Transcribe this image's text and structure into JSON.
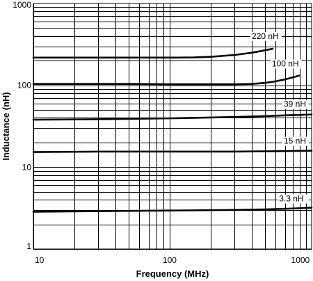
{
  "chart_data": {
    "type": "line",
    "title": "",
    "xlabel": "Frequency (MHz)",
    "ylabel": "Inductance (nH)",
    "x_scale": "log",
    "y_scale": "log",
    "xlim": [
      10,
      1100
    ],
    "ylim": [
      1,
      1000
    ],
    "grid": true,
    "legend": "inline labels at right end of each curve",
    "x_ticks": [
      {
        "value": 10,
        "label": "10"
      },
      {
        "value": 100,
        "label": "100"
      },
      {
        "value": 1000,
        "label": "1000"
      }
    ],
    "y_ticks": [
      {
        "value": 1,
        "label": "1"
      },
      {
        "value": 10,
        "label": "10"
      },
      {
        "value": 100,
        "label": "100"
      },
      {
        "value": 1000,
        "label": "1000"
      }
    ],
    "series": [
      {
        "name": "220 nH",
        "x": [
          10,
          50,
          100,
          150,
          200,
          300,
          400,
          500,
          570
        ],
        "y": [
          218,
          218,
          218,
          219,
          223,
          235,
          250,
          268,
          280
        ]
      },
      {
        "name": "100 nH",
        "x": [
          10,
          50,
          100,
          200,
          300,
          400,
          500,
          600,
          700,
          800,
          900
        ],
        "y": [
          104,
          104,
          103,
          103,
          103,
          104,
          107,
          112,
          118,
          125,
          132
        ]
      },
      {
        "name": "39 nH",
        "x": [
          10,
          30,
          100,
          300,
          500,
          700,
          900,
          1100
        ],
        "y": [
          38,
          38.5,
          39.5,
          41,
          42,
          43,
          43.5,
          44
        ]
      },
      {
        "name": "15 nH",
        "x": [
          10,
          30,
          100,
          300,
          500,
          700,
          900,
          1100
        ],
        "y": [
          15.3,
          15.5,
          15.5,
          15.5,
          15.6,
          15.7,
          15.8,
          15.9
        ]
      },
      {
        "name": "3.3 nH",
        "x": [
          10,
          30,
          100,
          300,
          500,
          700,
          900,
          1100
        ],
        "y": [
          2.85,
          2.9,
          2.95,
          3.0,
          3.05,
          3.1,
          3.15,
          3.2
        ]
      }
    ]
  }
}
